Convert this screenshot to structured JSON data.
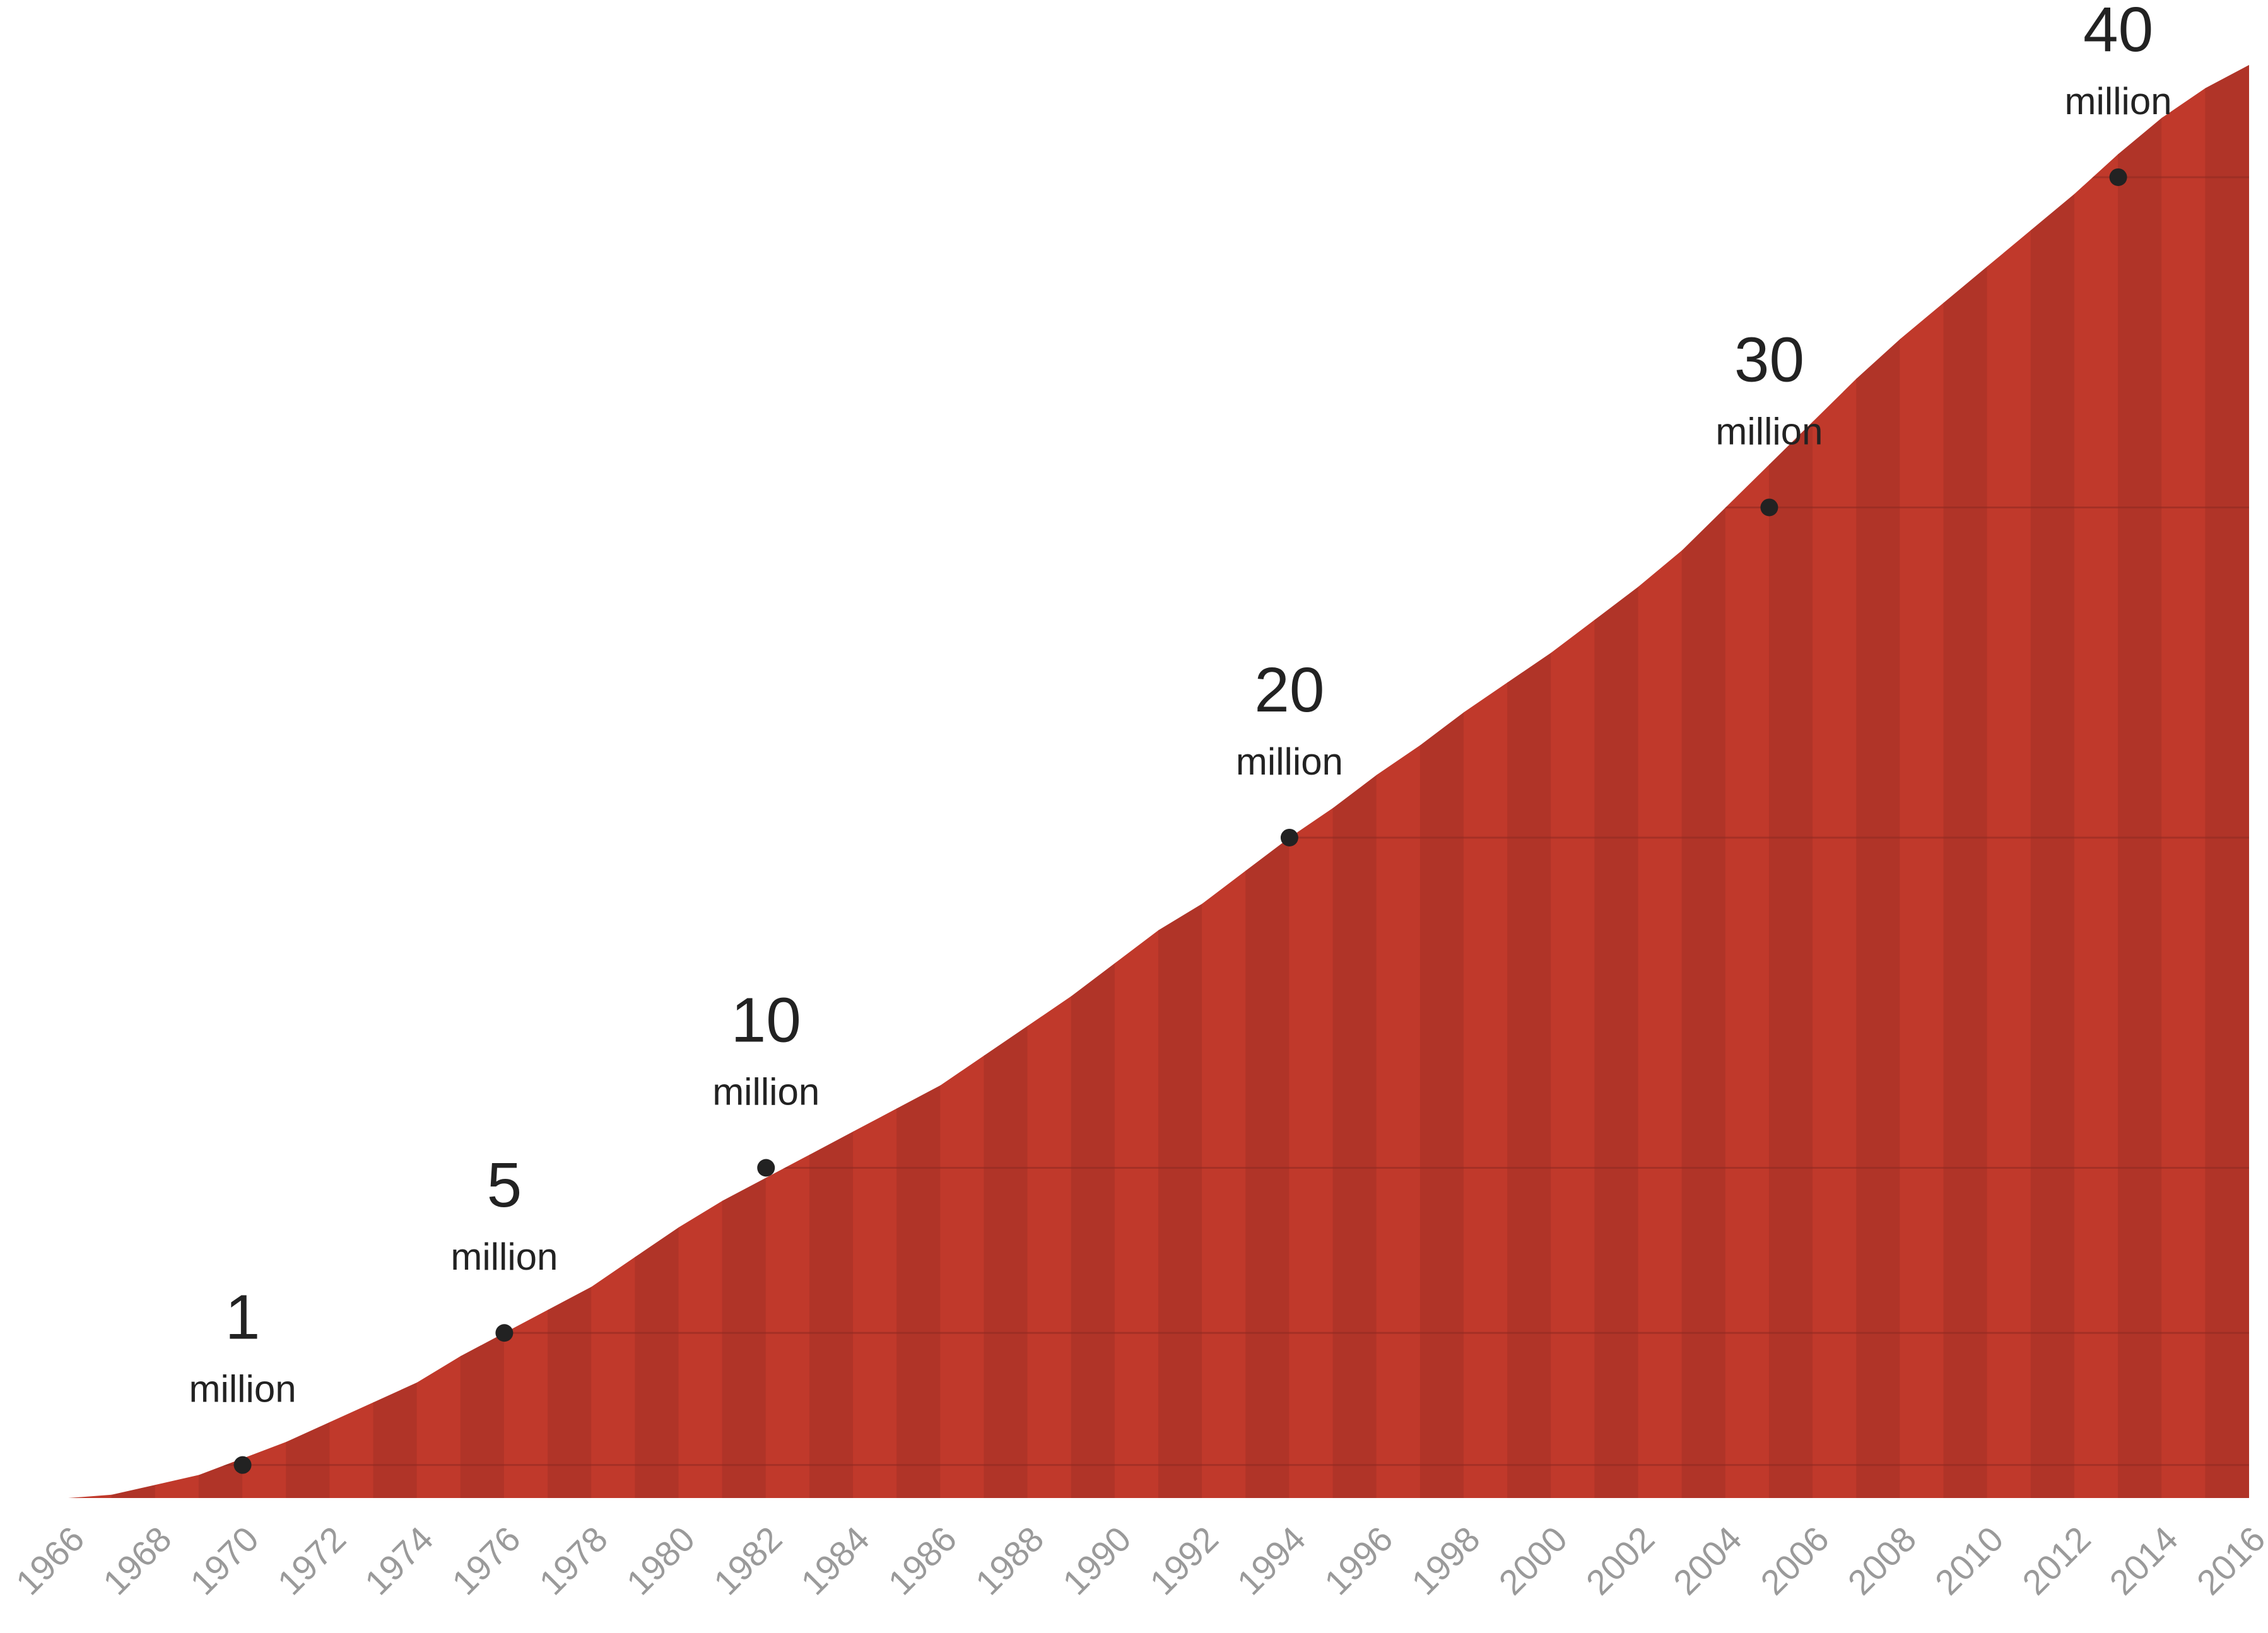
{
  "chart_data": {
    "type": "area",
    "x_tick_labels": [
      "1966",
      "1968",
      "1970",
      "1972",
      "1974",
      "1976",
      "1978",
      "1980",
      "1982",
      "1984",
      "1986",
      "1988",
      "1990",
      "1992",
      "1994",
      "1996",
      "1998",
      "2000",
      "2002",
      "2004",
      "2006",
      "2008",
      "2010",
      "2012",
      "2014",
      "2016"
    ],
    "x": [
      1966,
      1967,
      1968,
      1969,
      1970,
      1971,
      1972,
      1973,
      1974,
      1975,
      1976,
      1977,
      1978,
      1979,
      1980,
      1981,
      1982,
      1983,
      1984,
      1985,
      1986,
      1987,
      1988,
      1989,
      1990,
      1991,
      1992,
      1993,
      1994,
      1995,
      1996,
      1997,
      1998,
      1999,
      2000,
      2001,
      2002,
      2003,
      2004,
      2005,
      2006,
      2007,
      2008,
      2009,
      2010,
      2011,
      2012,
      2013,
      2014,
      2015,
      2016
    ],
    "values": [
      0.0,
      0.1,
      0.4,
      0.7,
      1.2,
      1.7,
      2.3,
      2.9,
      3.5,
      4.3,
      5.0,
      5.7,
      6.4,
      7.3,
      8.2,
      9.0,
      9.7,
      10.4,
      11.1,
      11.8,
      12.5,
      13.4,
      14.3,
      15.2,
      16.2,
      17.2,
      18.0,
      19.0,
      20.0,
      20.9,
      21.9,
      22.8,
      23.8,
      24.7,
      25.6,
      26.6,
      27.6,
      28.7,
      30.0,
      31.3,
      32.6,
      33.9,
      35.1,
      36.2,
      37.3,
      38.4,
      39.5,
      40.7,
      41.8,
      42.7,
      43.4
    ],
    "xlim": [
      1966,
      2016
    ],
    "ylim": [
      0,
      43.4
    ],
    "grid": false,
    "title": "",
    "xlabel": "",
    "ylabel": "",
    "fill_colors": [
      "#c0392b",
      "#b03428"
    ],
    "marker_color": "#222222",
    "milestones": [
      {
        "year": 1970,
        "value": 1,
        "number": "1",
        "unit": "million"
      },
      {
        "year": 1976,
        "value": 5,
        "number": "5",
        "unit": "million"
      },
      {
        "year": 1982,
        "value": 10,
        "number": "10",
        "unit": "million"
      },
      {
        "year": 1994,
        "value": 20,
        "number": "20",
        "unit": "million"
      },
      {
        "year": 2005,
        "value": 30,
        "number": "30",
        "unit": "million"
      },
      {
        "year": 2013,
        "value": 40,
        "number": "40",
        "unit": "million"
      }
    ]
  }
}
